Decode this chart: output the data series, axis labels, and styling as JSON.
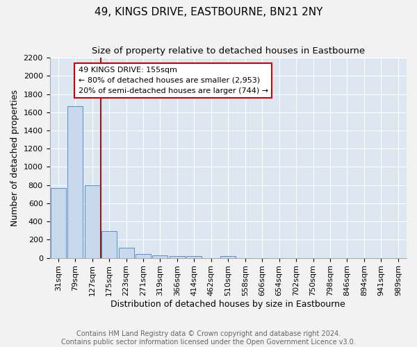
{
  "title": "49, KINGS DRIVE, EASTBOURNE, BN21 2NY",
  "subtitle": "Size of property relative to detached houses in Eastbourne",
  "xlabel": "Distribution of detached houses by size in Eastbourne",
  "ylabel": "Number of detached properties",
  "bar_color": "#c8d9ee",
  "bar_edge_color": "#5b8dc8",
  "background_color": "#dce6f1",
  "fig_background_color": "#f2f2f2",
  "categories": [
    "31sqm",
    "79sqm",
    "127sqm",
    "175sqm",
    "223sqm",
    "271sqm",
    "319sqm",
    "366sqm",
    "414sqm",
    "462sqm",
    "510sqm",
    "558sqm",
    "606sqm",
    "654sqm",
    "702sqm",
    "750sqm",
    "798sqm",
    "846sqm",
    "894sqm",
    "941sqm",
    "989sqm"
  ],
  "values": [
    770,
    1670,
    800,
    295,
    110,
    40,
    27,
    22,
    20,
    0,
    22,
    0,
    0,
    0,
    0,
    0,
    0,
    0,
    0,
    0,
    0
  ],
  "ylim": [
    0,
    2200
  ],
  "yticks": [
    0,
    200,
    400,
    600,
    800,
    1000,
    1200,
    1400,
    1600,
    1800,
    2000,
    2200
  ],
  "vline_x": 2.5,
  "vline_color": "#8b1a1a",
  "annotation_text": "49 KINGS DRIVE: 155sqm\n← 80% of detached houses are smaller (2,953)\n20% of semi-detached houses are larger (744) →",
  "annotation_box_color": "#ffffff",
  "annotation_box_edge": "#cc0000",
  "footer_text": "Contains HM Land Registry data © Crown copyright and database right 2024.\nContains public sector information licensed under the Open Government Licence v3.0.",
  "title_fontsize": 11,
  "subtitle_fontsize": 9.5,
  "xlabel_fontsize": 9,
  "ylabel_fontsize": 9,
  "footer_fontsize": 7,
  "tick_fontsize": 8,
  "annotation_fontsize": 8
}
